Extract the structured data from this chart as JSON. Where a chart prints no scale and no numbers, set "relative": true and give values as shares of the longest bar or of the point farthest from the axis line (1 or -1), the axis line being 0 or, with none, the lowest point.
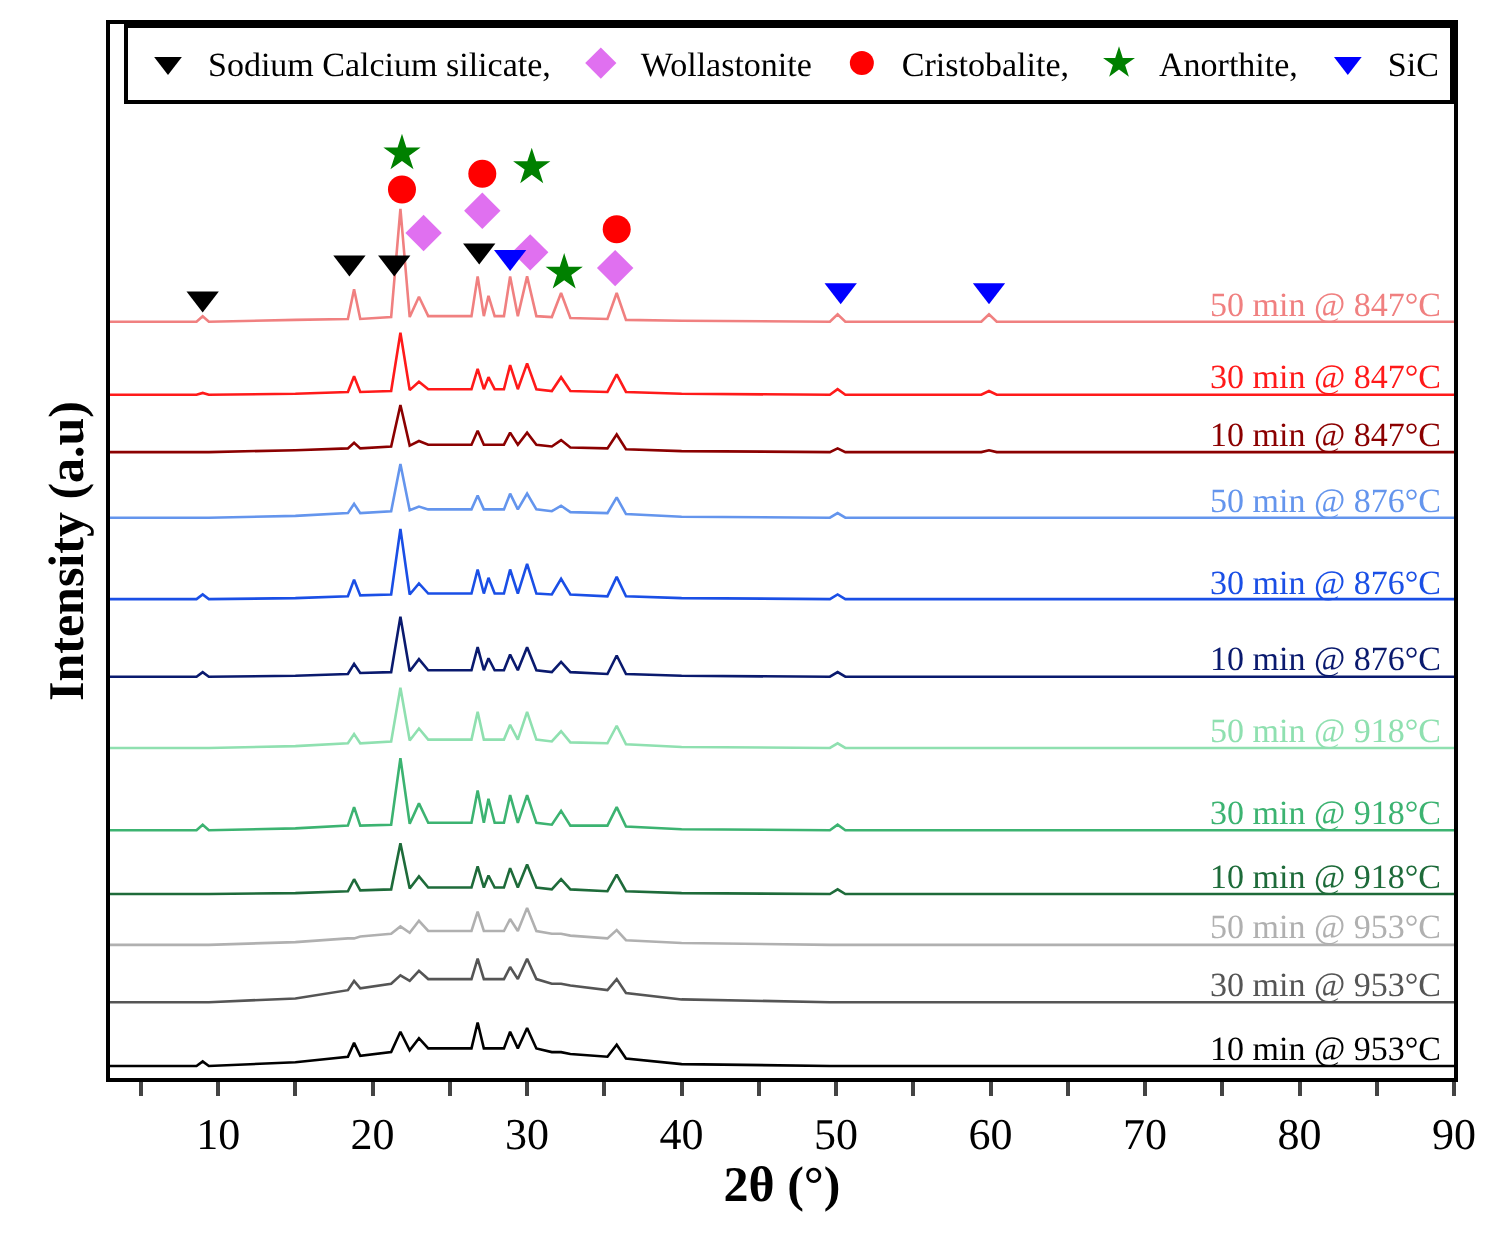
{
  "chart_data": {
    "type": "line",
    "xlabel": "2θ (°)",
    "ylabel": "Intensity (a.u)",
    "relative": true,
    "tick_labels": "x",
    "legend": "top right",
    "marker": "none",
    "xlim": [
      3,
      90
    ],
    "xticks": [
      {
        "value": 5,
        "label": null
      },
      10,
      {
        "value": 15,
        "label": null
      },
      20,
      {
        "value": 25,
        "label": null
      },
      30,
      {
        "value": 35,
        "label": null
      },
      40,
      {
        "value": 45,
        "label": null
      },
      50,
      {
        "value": 55,
        "label": null
      },
      60,
      {
        "value": 65,
        "label": null
      },
      70,
      {
        "value": 75,
        "label": null
      },
      80,
      {
        "value": 85,
        "label": null
      },
      90
    ],
    "x": [
      3,
      8.6,
      9,
      9.4,
      15,
      18.4,
      18.8,
      19.2,
      21.2,
      21.8,
      22.4,
      23.0,
      23.6,
      26.4,
      26.8,
      27.2,
      27.5,
      27.9,
      28.5,
      28.9,
      29.4,
      30.0,
      30.6,
      31.6,
      32.2,
      32.8,
      35.2,
      35.8,
      36.4,
      40,
      49.6,
      50.1,
      50.6,
      59.4,
      59.9,
      60.4,
      90
    ],
    "series": [
      {
        "name": "50 min @ 847°C",
        "color": "#f08080",
        "values": [
          0.818,
          0.818,
          0.824,
          0.818,
          0.82,
          0.821,
          0.853,
          0.821,
          0.823,
          0.94,
          0.823,
          0.845,
          0.824,
          0.824,
          0.867,
          0.824,
          0.846,
          0.824,
          0.824,
          0.867,
          0.824,
          0.867,
          0.824,
          0.823,
          0.849,
          0.822,
          0.821,
          0.849,
          0.82,
          0.819,
          0.818,
          0.826,
          0.818,
          0.818,
          0.826,
          0.818,
          0.818
        ]
      },
      {
        "name": "30 min @ 847°C",
        "color": "#ff1a1a",
        "values": [
          0.739,
          0.739,
          0.741,
          0.739,
          0.74,
          0.742,
          0.759,
          0.742,
          0.743,
          0.806,
          0.744,
          0.753,
          0.745,
          0.745,
          0.767,
          0.745,
          0.758,
          0.745,
          0.745,
          0.771,
          0.745,
          0.773,
          0.745,
          0.743,
          0.758,
          0.743,
          0.742,
          0.761,
          0.742,
          0.74,
          0.739,
          0.745,
          0.739,
          0.739,
          0.743,
          0.739,
          0.739
        ]
      },
      {
        "name": "10 min @ 847°C",
        "color": "#8b0000",
        "values": [
          0.677,
          0.677,
          0.677,
          0.677,
          0.679,
          0.681,
          0.687,
          0.681,
          0.683,
          0.728,
          0.684,
          0.689,
          0.685,
          0.685,
          0.7,
          0.685,
          0.685,
          0.685,
          0.685,
          0.698,
          0.685,
          0.698,
          0.685,
          0.683,
          0.69,
          0.682,
          0.681,
          0.696,
          0.68,
          0.678,
          0.677,
          0.681,
          0.677,
          0.677,
          0.679,
          0.677,
          0.677
        ]
      },
      {
        "name": "50 min @ 876°C",
        "color": "#6495ed",
        "values": [
          0.606,
          0.606,
          0.606,
          0.606,
          0.608,
          0.611,
          0.621,
          0.611,
          0.613,
          0.664,
          0.614,
          0.618,
          0.615,
          0.615,
          0.63,
          0.615,
          0.615,
          0.615,
          0.615,
          0.632,
          0.615,
          0.632,
          0.615,
          0.613,
          0.619,
          0.612,
          0.611,
          0.628,
          0.61,
          0.607,
          0.606,
          0.611,
          0.606,
          0.606,
          0.606,
          0.606,
          0.606
        ]
      },
      {
        "name": "30 min @ 876°C",
        "color": "#1a4fe6",
        "values": [
          0.518,
          0.518,
          0.523,
          0.518,
          0.519,
          0.521,
          0.539,
          0.522,
          0.523,
          0.594,
          0.523,
          0.535,
          0.524,
          0.524,
          0.55,
          0.524,
          0.541,
          0.524,
          0.524,
          0.55,
          0.524,
          0.556,
          0.524,
          0.523,
          0.54,
          0.523,
          0.521,
          0.542,
          0.521,
          0.519,
          0.518,
          0.523,
          0.518,
          0.518,
          0.518,
          0.518,
          0.518
        ]
      },
      {
        "name": "10 min @ 876°C",
        "color": "#0a1a6e",
        "values": [
          0.434,
          0.434,
          0.439,
          0.434,
          0.435,
          0.437,
          0.448,
          0.438,
          0.439,
          0.499,
          0.44,
          0.453,
          0.441,
          0.441,
          0.466,
          0.441,
          0.454,
          0.441,
          0.441,
          0.458,
          0.441,
          0.466,
          0.441,
          0.439,
          0.45,
          0.439,
          0.437,
          0.457,
          0.437,
          0.435,
          0.434,
          0.439,
          0.434,
          0.434,
          0.434,
          0.434,
          0.434
        ]
      },
      {
        "name": "50 min @ 918°C",
        "color": "#8fe0b0",
        "values": [
          0.357,
          0.357,
          0.357,
          0.357,
          0.359,
          0.362,
          0.372,
          0.362,
          0.364,
          0.422,
          0.365,
          0.378,
          0.366,
          0.366,
          0.396,
          0.366,
          0.366,
          0.366,
          0.366,
          0.382,
          0.366,
          0.396,
          0.366,
          0.364,
          0.375,
          0.363,
          0.362,
          0.381,
          0.361,
          0.358,
          0.357,
          0.362,
          0.357,
          0.357,
          0.357,
          0.357,
          0.357
        ]
      },
      {
        "name": "30 min @ 918°C",
        "color": "#3cb371",
        "values": [
          0.268,
          0.268,
          0.274,
          0.268,
          0.27,
          0.273,
          0.293,
          0.273,
          0.274,
          0.346,
          0.275,
          0.297,
          0.276,
          0.276,
          0.311,
          0.276,
          0.302,
          0.276,
          0.276,
          0.306,
          0.276,
          0.306,
          0.276,
          0.274,
          0.289,
          0.273,
          0.273,
          0.293,
          0.272,
          0.269,
          0.268,
          0.274,
          0.268,
          0.268,
          0.268,
          0.268,
          0.268
        ]
      },
      {
        "name": "10 min @ 918°C",
        "color": "#1e6b3a",
        "values": [
          0.199,
          0.199,
          0.199,
          0.199,
          0.2,
          0.202,
          0.215,
          0.203,
          0.204,
          0.254,
          0.205,
          0.218,
          0.206,
          0.206,
          0.229,
          0.206,
          0.219,
          0.206,
          0.206,
          0.227,
          0.206,
          0.231,
          0.206,
          0.204,
          0.215,
          0.204,
          0.202,
          0.22,
          0.202,
          0.2,
          0.199,
          0.204,
          0.199,
          0.199,
          0.199,
          0.199,
          0.199
        ]
      },
      {
        "name": "50 min @ 953°C",
        "color": "#b0b0b0",
        "values": [
          0.144,
          0.144,
          0.144,
          0.144,
          0.147,
          0.151,
          0.151,
          0.153,
          0.156,
          0.164,
          0.157,
          0.17,
          0.159,
          0.159,
          0.18,
          0.159,
          0.159,
          0.159,
          0.159,
          0.172,
          0.159,
          0.184,
          0.159,
          0.156,
          0.156,
          0.154,
          0.151,
          0.16,
          0.149,
          0.146,
          0.144,
          0.144,
          0.144,
          0.144,
          0.144,
          0.144,
          0.144
        ]
      },
      {
        "name": "30 min @ 953°C",
        "color": "#555555",
        "values": [
          0.082,
          0.082,
          0.082,
          0.082,
          0.086,
          0.095,
          0.105,
          0.097,
          0.102,
          0.111,
          0.105,
          0.116,
          0.107,
          0.107,
          0.129,
          0.107,
          0.107,
          0.107,
          0.107,
          0.12,
          0.107,
          0.129,
          0.107,
          0.102,
          0.102,
          0.1,
          0.095,
          0.107,
          0.092,
          0.085,
          0.082,
          0.082,
          0.082,
          0.082,
          0.082,
          0.082,
          0.082
        ]
      },
      {
        "name": "10 min @ 953°C",
        "color": "#000000",
        "values": [
          0.013,
          0.013,
          0.018,
          0.013,
          0.017,
          0.023,
          0.038,
          0.024,
          0.028,
          0.05,
          0.03,
          0.043,
          0.032,
          0.032,
          0.06,
          0.032,
          0.032,
          0.032,
          0.032,
          0.05,
          0.032,
          0.054,
          0.032,
          0.028,
          0.028,
          0.026,
          0.023,
          0.036,
          0.021,
          0.015,
          0.013,
          0.013,
          0.013,
          0.013,
          0.013,
          0.013,
          0.013
        ]
      },
      {
        "type": "scatter",
        "name": "Sodium Calcium silicate,",
        "color": "#000000",
        "marker": "triangle",
        "x": [
          9.0,
          18.5,
          21.4,
          26.9
        ],
        "values": [
          0.843,
          0.882,
          0.882,
          0.895
        ]
      },
      {
        "type": "scatter",
        "name": "Wollastonite",
        "color": "#e070f0",
        "marker": "diamond",
        "x": [
          23.3,
          27.1,
          30.2,
          35.7
        ],
        "values": [
          0.914,
          0.938,
          0.893,
          0.876
        ]
      },
      {
        "type": "scatter",
        "name": "Cristobalite,",
        "color": "#ff0000",
        "marker": "circle",
        "x": [
          21.9,
          27.1,
          35.8
        ],
        "values": [
          0.961,
          0.978,
          0.918
        ]
      },
      {
        "type": "scatter",
        "name": "Anorthite,",
        "color": "#008000",
        "marker": "star",
        "x": [
          21.9,
          30.3,
          32.4
        ],
        "values": [
          1.0,
          0.985,
          0.871
        ]
      },
      {
        "type": "scatter",
        "name": "SiC",
        "color": "#0000ff",
        "marker": "triangle",
        "x": [
          28.9,
          50.3,
          59.9
        ],
        "values": [
          0.888,
          0.852,
          0.852
        ]
      }
    ]
  }
}
